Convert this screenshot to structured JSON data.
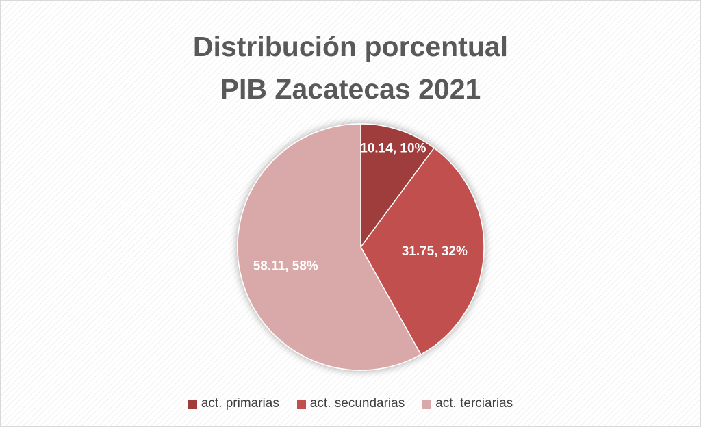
{
  "chart_data": {
    "type": "pie",
    "title": "Distribución porcentual\nPIB Zacatecas 2021",
    "categories": [
      "act. primarias",
      "act. secundarias",
      "act. terciarias"
    ],
    "values": [
      10.14,
      31.75,
      58.11
    ],
    "value_labels": [
      "10.14, 10%",
      "31.75, 32%",
      "58.11, 58%"
    ],
    "colors": [
      "#9e3c3b",
      "#c0504d",
      "#d9a9a9"
    ]
  }
}
